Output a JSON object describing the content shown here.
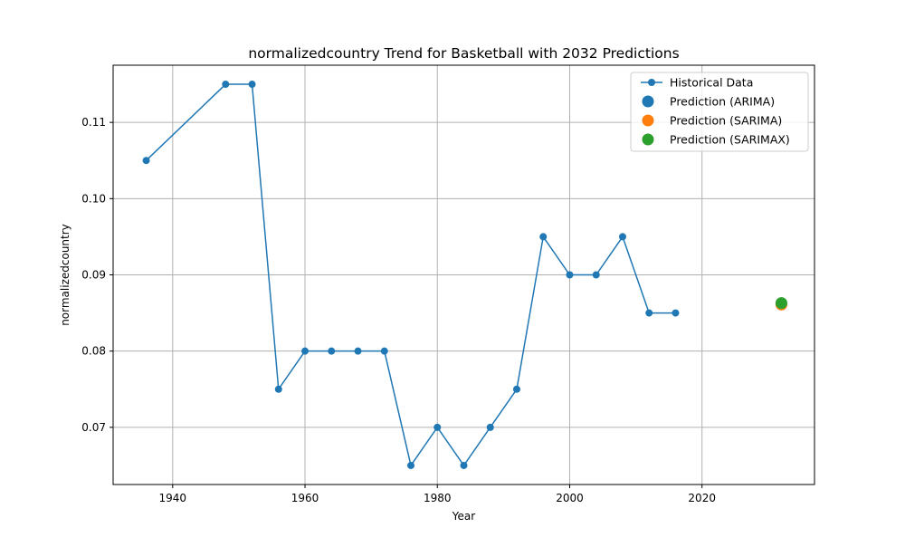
{
  "chart_data": {
    "type": "line",
    "title": "normalizedcountry Trend for Basketball with 2032 Predictions",
    "xlabel": "Year",
    "ylabel": "normalizedcountry",
    "xlim": [
      1931,
      2037
    ],
    "ylim": [
      0.0625,
      0.1175
    ],
    "xticks": [
      1940,
      1960,
      1980,
      2000,
      2020
    ],
    "yticks": [
      0.07,
      0.08,
      0.09,
      0.1,
      0.11
    ],
    "ytick_labels": [
      "0.07",
      "0.08",
      "0.09",
      "0.10",
      "0.11"
    ],
    "grid": true,
    "legend_position": "top-right",
    "series": [
      {
        "name": "Historical Data",
        "kind": "line-marker",
        "color": "#1f77b4",
        "x": [
          1936,
          1948,
          1952,
          1956,
          1960,
          1964,
          1968,
          1972,
          1976,
          1980,
          1984,
          1988,
          1992,
          1996,
          2000,
          2004,
          2008,
          2012,
          2016
        ],
        "y": [
          0.105,
          0.115,
          0.115,
          0.075,
          0.08,
          0.08,
          0.08,
          0.08,
          0.065,
          0.07,
          0.065,
          0.07,
          0.075,
          0.095,
          0.09,
          0.09,
          0.095,
          0.085,
          0.085
        ]
      },
      {
        "name": "Prediction (ARIMA)",
        "kind": "point",
        "color": "#1f77b4",
        "x": [
          2032
        ],
        "y": [
          0.0862
        ]
      },
      {
        "name": "Prediction (SARIMA)",
        "kind": "point",
        "color": "#ff7f0e",
        "x": [
          2032
        ],
        "y": [
          0.0861
        ]
      },
      {
        "name": "Prediction (SARIMAX)",
        "kind": "point",
        "color": "#2ca02c",
        "x": [
          2032
        ],
        "y": [
          0.0863
        ]
      }
    ]
  }
}
